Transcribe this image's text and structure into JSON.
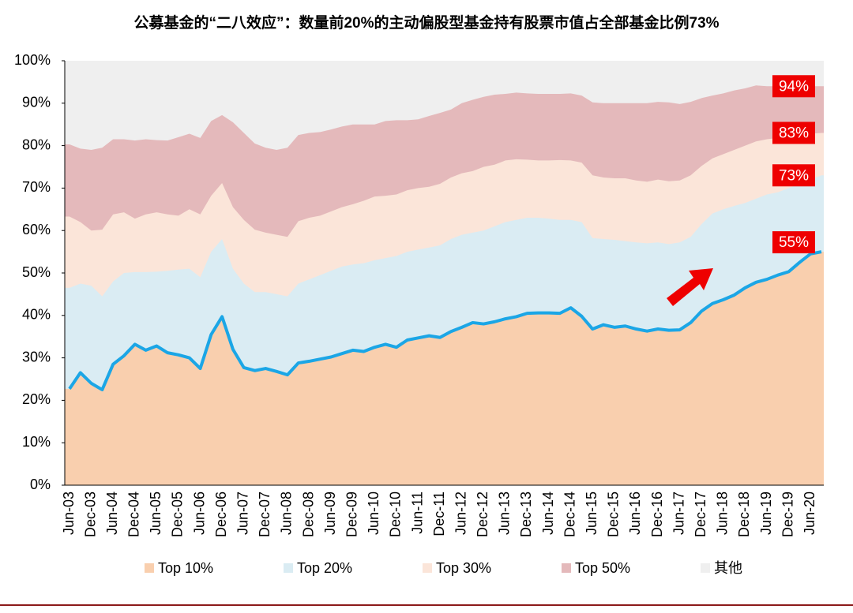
{
  "chart_data": {
    "type": "area",
    "title": "公募基金的“二八效应”：数量前20%的主动偏股型基金持有股票市值占全部基金比例73%",
    "categories": [
      "Jun-03",
      null,
      "Dec-03",
      null,
      "Jun-04",
      null,
      "Dec-04",
      null,
      "Jun-05",
      null,
      "Dec-05",
      null,
      "Jun-06",
      null,
      "Dec-06",
      null,
      "Jun-07",
      null,
      "Dec-07",
      null,
      "Jun-08",
      null,
      "Dec-08",
      null,
      "Jun-09",
      null,
      "Dec-09",
      null,
      "Jun-10",
      null,
      "Dec-10",
      null,
      "Jun-11",
      null,
      "Dec-11",
      null,
      "Jun-12",
      null,
      "Dec-12",
      null,
      "Jun-13",
      null,
      "Dec-13",
      null,
      "Jun-14",
      null,
      "Dec-14",
      null,
      "Jun-15",
      null,
      "Dec-15",
      null,
      "Jun-16",
      null,
      "Dec-16",
      null,
      "Jun-17",
      null,
      "Dec-17",
      null,
      "Jun-18",
      null,
      "Dec-18",
      null,
      "Jun-19",
      null,
      "Dec-19",
      null,
      "Jun-20",
      null
    ],
    "series": [
      {
        "name": "其他",
        "color": "#efefef",
        "values": [
          100,
          100,
          100,
          100,
          100,
          100,
          100,
          100,
          100,
          100,
          100,
          100,
          100,
          100,
          100,
          100,
          100,
          100,
          100,
          100,
          100,
          100,
          100,
          100,
          100,
          100,
          100,
          100,
          100,
          100,
          100,
          100,
          100,
          100,
          100,
          100,
          100,
          100,
          100,
          100,
          100,
          100,
          100,
          100,
          100,
          100,
          100,
          100,
          100,
          100,
          100,
          100,
          100,
          100,
          100,
          100,
          100,
          100,
          100,
          100,
          100,
          100,
          100,
          100,
          100,
          100,
          100,
          100,
          100,
          100
        ]
      },
      {
        "name": "Top 50%",
        "color": "#e4b9bb",
        "values": [
          80.3,
          79.3,
          79,
          79.5,
          81.5,
          81.5,
          81.2,
          81.5,
          81.3,
          81.2,
          82,
          82.8,
          81.8,
          85.8,
          87.2,
          85.5,
          83,
          80.5,
          79.5,
          79,
          79.5,
          82.5,
          83,
          83.2,
          83.8,
          84.5,
          85,
          85,
          85,
          85.8,
          86,
          86,
          86.2,
          87,
          87.7,
          88.5,
          90,
          90.8,
          91.5,
          92,
          92.2,
          92.5,
          92.3,
          92.2,
          92.2,
          92.2,
          92.3,
          91.8,
          90.2,
          90,
          90,
          90,
          90,
          90,
          90.3,
          90.2,
          89.8,
          90.3,
          91.2,
          91.8,
          92.3,
          93,
          93.5,
          94.2,
          94,
          94,
          94,
          94.2,
          94,
          94
        ],
        "value_labels": [
          null,
          null,
          null,
          null,
          null,
          null,
          null,
          null,
          null,
          null,
          null,
          null,
          null,
          null,
          null,
          null,
          null,
          null,
          null,
          null,
          null,
          null,
          null,
          null,
          null,
          null,
          null,
          null,
          null,
          null,
          null,
          null,
          null,
          null,
          null,
          null,
          null,
          null,
          null,
          null,
          null,
          null,
          null,
          null,
          null,
          null,
          null,
          null,
          null,
          null,
          null,
          null,
          null,
          null,
          null,
          null,
          null,
          null,
          null,
          null,
          null,
          null,
          null,
          null,
          null,
          null,
          null,
          null,
          null,
          "94%"
        ]
      },
      {
        "name": "Top 30%",
        "color": "#fbe5d9",
        "values": [
          63.3,
          62,
          60,
          60.2,
          63.8,
          64.3,
          62.8,
          63.8,
          64.3,
          63.8,
          63.5,
          65,
          63.8,
          68.2,
          71.2,
          65.5,
          62.5,
          60.2,
          59.5,
          59,
          58.5,
          62.2,
          63,
          63.5,
          64.5,
          65.5,
          66.2,
          67,
          68,
          68.2,
          68.5,
          69.5,
          70,
          70.3,
          71,
          72.5,
          73.5,
          74,
          75,
          75.5,
          76.5,
          76.8,
          76.7,
          76.5,
          76.5,
          76.6,
          76.5,
          76,
          73,
          72.5,
          72.3,
          72.3,
          71.8,
          71.5,
          72,
          71.6,
          71.8,
          73,
          75.2,
          77,
          78,
          79,
          80,
          81,
          81.5,
          81.8,
          82.2,
          82.5,
          82.8,
          83
        ],
        "value_labels": [
          null,
          null,
          null,
          null,
          null,
          null,
          null,
          null,
          null,
          null,
          null,
          null,
          null,
          null,
          null,
          null,
          null,
          null,
          null,
          null,
          null,
          null,
          null,
          null,
          null,
          null,
          null,
          null,
          null,
          null,
          null,
          null,
          null,
          null,
          null,
          null,
          null,
          null,
          null,
          null,
          null,
          null,
          null,
          null,
          null,
          null,
          null,
          null,
          null,
          null,
          null,
          null,
          null,
          null,
          null,
          null,
          null,
          null,
          null,
          null,
          null,
          null,
          null,
          null,
          null,
          null,
          null,
          null,
          null,
          "83%"
        ]
      },
      {
        "name": "Top 20%",
        "color": "#daecf3",
        "values": [
          46.5,
          47.5,
          47,
          44.5,
          48,
          50,
          50.2,
          50.2,
          50.3,
          50.5,
          50.8,
          51,
          49,
          55,
          58,
          51,
          47.5,
          45.5,
          45.5,
          45,
          44.5,
          47.5,
          48.5,
          49.5,
          50.5,
          51.5,
          52,
          52.3,
          53,
          53.5,
          54,
          55,
          55.5,
          56,
          56.5,
          58,
          59,
          59.5,
          60,
          61,
          62,
          62.5,
          63,
          63,
          62.8,
          62.5,
          62.5,
          62,
          58.2,
          58,
          57.8,
          57.5,
          57.2,
          57,
          57.2,
          56.8,
          57.2,
          58.5,
          61.5,
          64,
          65,
          65.8,
          66.5,
          67.5,
          68.5,
          69,
          70,
          71,
          72,
          73
        ],
        "value_labels": [
          null,
          null,
          null,
          null,
          null,
          null,
          null,
          null,
          null,
          null,
          null,
          null,
          null,
          null,
          null,
          null,
          null,
          null,
          null,
          null,
          null,
          null,
          null,
          null,
          null,
          null,
          null,
          null,
          null,
          null,
          null,
          null,
          null,
          null,
          null,
          null,
          null,
          null,
          null,
          null,
          null,
          null,
          null,
          null,
          null,
          null,
          null,
          null,
          null,
          null,
          null,
          null,
          null,
          null,
          null,
          null,
          null,
          null,
          null,
          null,
          null,
          null,
          null,
          null,
          null,
          null,
          null,
          null,
          null,
          "73%"
        ]
      },
      {
        "name": "Top 10%",
        "color": "#f9cfae",
        "line_color": "#1ba6e6",
        "values": [
          22.7,
          26.5,
          24,
          22.5,
          28.5,
          30.5,
          33.2,
          31.8,
          32.8,
          31.2,
          30.7,
          30,
          27.5,
          35.5,
          39.7,
          32,
          27.7,
          27,
          27.5,
          26.8,
          26,
          28.8,
          29.2,
          29.7,
          30.2,
          31,
          31.8,
          31.5,
          32.5,
          33.2,
          32.5,
          34.2,
          34.7,
          35.2,
          34.8,
          36.2,
          37.2,
          38.3,
          38,
          38.5,
          39.2,
          39.7,
          40.5,
          40.6,
          40.6,
          40.5,
          41.8,
          39.8,
          36.8,
          37.8,
          37.2,
          37.5,
          36.8,
          36.3,
          36.8,
          36.5,
          36.6,
          38.3,
          41,
          42.8,
          43.7,
          44.8,
          46.5,
          47.8,
          48.5,
          49.5,
          50.3,
          52.5,
          54.5,
          55
        ],
        "value_labels": [
          null,
          null,
          null,
          null,
          null,
          null,
          null,
          null,
          null,
          null,
          null,
          null,
          null,
          null,
          null,
          null,
          null,
          null,
          null,
          null,
          null,
          null,
          null,
          null,
          null,
          null,
          null,
          null,
          null,
          null,
          null,
          null,
          null,
          null,
          null,
          null,
          null,
          null,
          null,
          null,
          null,
          null,
          null,
          null,
          null,
          null,
          null,
          null,
          null,
          null,
          null,
          null,
          null,
          null,
          null,
          null,
          null,
          null,
          null,
          null,
          null,
          null,
          null,
          null,
          null,
          null,
          null,
          null,
          null,
          "55%"
        ]
      }
    ],
    "label_color": "#ee0000",
    "legend_order": [
      4,
      3,
      2,
      1,
      0
    ],
    "ylim": [
      0,
      100
    ],
    "yticks": [
      {
        "value": 0,
        "label": "0%"
      },
      {
        "value": 10,
        "label": "10%"
      },
      {
        "value": 20,
        "label": "20%"
      },
      {
        "value": 30,
        "label": "30%"
      },
      {
        "value": 40,
        "label": "40%"
      },
      {
        "value": 50,
        "label": "50%"
      },
      {
        "value": 60,
        "label": "60%"
      },
      {
        "value": 70,
        "label": "70%"
      },
      {
        "value": 80,
        "label": "80%"
      },
      {
        "value": 90,
        "label": "90%"
      },
      {
        "value": 100,
        "label": "100%"
      }
    ]
  }
}
